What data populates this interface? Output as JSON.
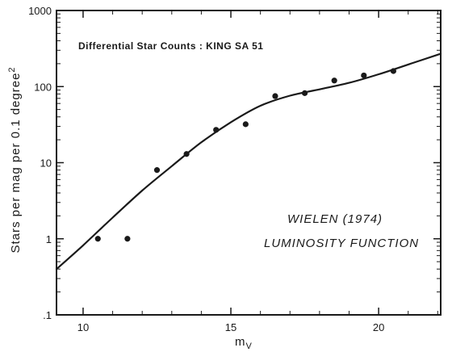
{
  "chart_data": {
    "type": "scatter",
    "title": "Differential Star Counts : KING SA 51",
    "xlabel": "m",
    "xlabel_sub": "V",
    "ylabel": "Stars per mag per 0.1 degree",
    "ylabel_sup": "2",
    "x_ticks": [
      "10",
      "15",
      "20"
    ],
    "y_ticks": [
      "1000",
      "100",
      "10",
      "1",
      ".1"
    ],
    "xlim": [
      9.1,
      22.1
    ],
    "ylim": [
      0.1,
      1000
    ],
    "yscale": "log",
    "grid": false,
    "annotation": [
      "WIELEN (1974)",
      "LUMINOSITY FUNCTION"
    ],
    "series": [
      {
        "kind": "points",
        "x": [
          10.5,
          11.5,
          12.5,
          13.5,
          14.5,
          15.5,
          16.5,
          17.5,
          18.5,
          19.5,
          20.5
        ],
        "y": [
          1.0,
          1.0,
          8.0,
          13.0,
          27.0,
          32.0,
          75.0,
          82.0,
          120.0,
          140.0,
          160.0
        ]
      },
      {
        "kind": "curve",
        "x": [
          9.1,
          10.0,
          11.0,
          12.0,
          13.0,
          14.0,
          15.0,
          16.0,
          17.0,
          18.0,
          19.0,
          20.0,
          21.0,
          22.1
        ],
        "y": [
          0.4,
          0.82,
          1.9,
          4.3,
          9.0,
          18.5,
          34.0,
          56.0,
          76.0,
          92.0,
          112.0,
          145.0,
          195.0,
          270.0
        ]
      }
    ]
  }
}
